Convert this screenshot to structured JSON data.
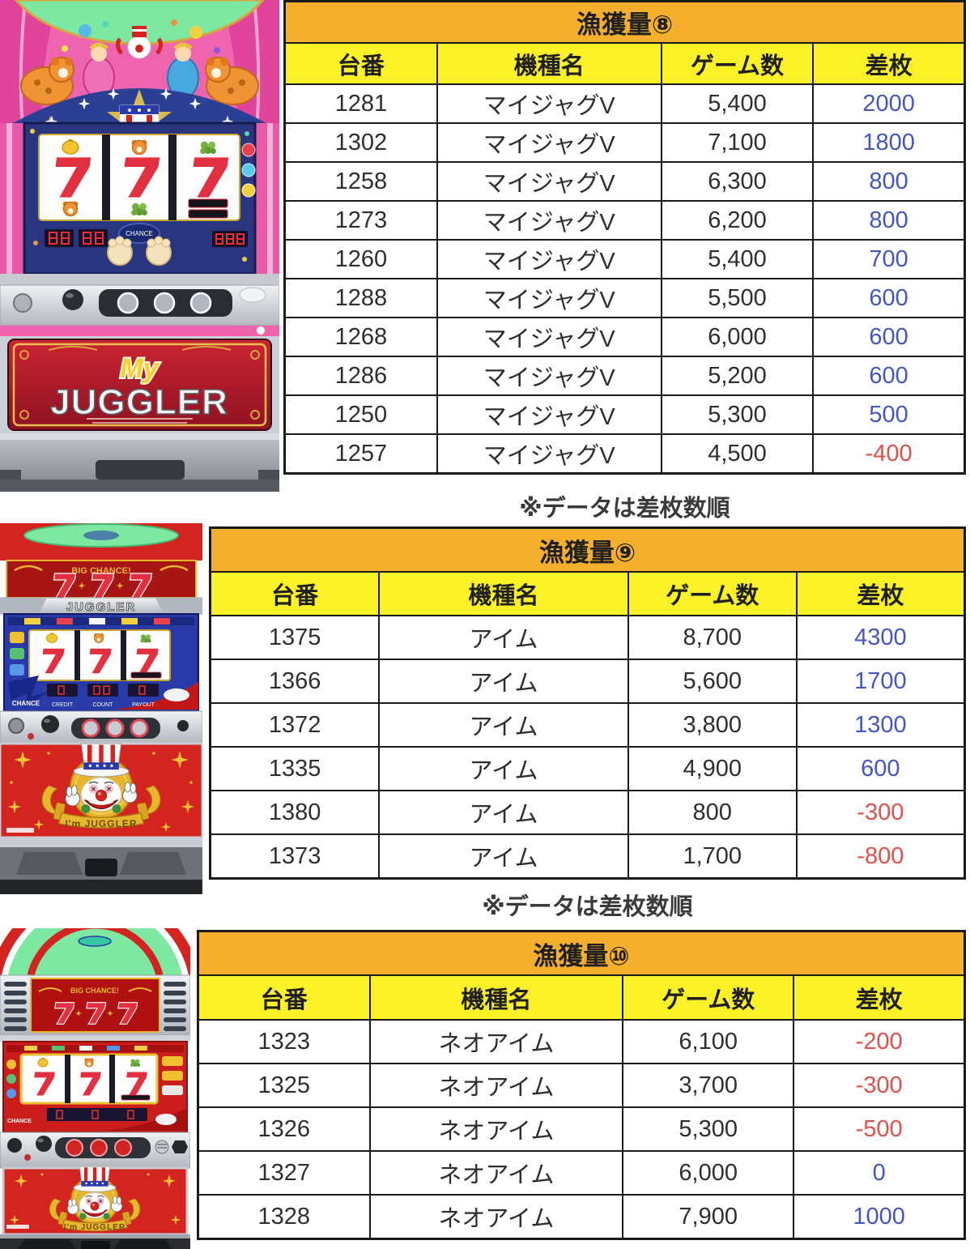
{
  "colors": {
    "title_bg": "#F4AF2C",
    "header_bg": "#FAF226",
    "blue": "#4355C7",
    "red": "#E0514B",
    "border": "#1b1b1b"
  },
  "tables": [
    {
      "title": "漁獲量⑧",
      "columns": [
        "台番",
        "機種名",
        "ゲーム数",
        "差枚"
      ],
      "note": "※データは差枚数順",
      "rows": [
        {
          "dai": "1281",
          "model": "マイジャグV",
          "games": "5,400",
          "diff": "2000",
          "diff_color": "blue"
        },
        {
          "dai": "1302",
          "model": "マイジャグV",
          "games": "7,100",
          "diff": "1800",
          "diff_color": "blue"
        },
        {
          "dai": "1258",
          "model": "マイジャグV",
          "games": "6,300",
          "diff": "800",
          "diff_color": "blue"
        },
        {
          "dai": "1273",
          "model": "マイジャグV",
          "games": "6,200",
          "diff": "800",
          "diff_color": "blue"
        },
        {
          "dai": "1260",
          "model": "マイジャグV",
          "games": "5,400",
          "diff": "700",
          "diff_color": "blue"
        },
        {
          "dai": "1288",
          "model": "マイジャグV",
          "games": "5,500",
          "diff": "600",
          "diff_color": "blue"
        },
        {
          "dai": "1268",
          "model": "マイジャグV",
          "games": "6,000",
          "diff": "600",
          "diff_color": "blue"
        },
        {
          "dai": "1286",
          "model": "マイジャグV",
          "games": "5,200",
          "diff": "600",
          "diff_color": "blue"
        },
        {
          "dai": "1250",
          "model": "マイジャグV",
          "games": "5,300",
          "diff": "500",
          "diff_color": "blue"
        },
        {
          "dai": "1257",
          "model": "マイジャグV",
          "games": "4,500",
          "diff": "-400",
          "diff_color": "red"
        }
      ]
    },
    {
      "title": "漁獲量⑨",
      "columns": [
        "台番",
        "機種名",
        "ゲーム数",
        "差枚"
      ],
      "note": "※データは差枚数順",
      "rows": [
        {
          "dai": "1375",
          "model": "アイム",
          "games": "8,700",
          "diff": "4300",
          "diff_color": "blue"
        },
        {
          "dai": "1366",
          "model": "アイム",
          "games": "5,600",
          "diff": "1700",
          "diff_color": "blue"
        },
        {
          "dai": "1372",
          "model": "アイム",
          "games": "3,800",
          "diff": "1300",
          "diff_color": "blue"
        },
        {
          "dai": "1335",
          "model": "アイム",
          "games": "4,900",
          "diff": "600",
          "diff_color": "blue"
        },
        {
          "dai": "1380",
          "model": "アイム",
          "games": "800",
          "diff": "-300",
          "diff_color": "red"
        },
        {
          "dai": "1373",
          "model": "アイム",
          "games": "1,700",
          "diff": "-800",
          "diff_color": "red"
        }
      ]
    },
    {
      "title": "漁獲量⑩",
      "columns": [
        "台番",
        "機種名",
        "ゲーム数",
        "差枚"
      ],
      "note": "",
      "rows": [
        {
          "dai": "1323",
          "model": "ネオアイム",
          "games": "6,100",
          "diff": "-200",
          "diff_color": "red"
        },
        {
          "dai": "1325",
          "model": "ネオアイム",
          "games": "3,700",
          "diff": "-300",
          "diff_color": "red"
        },
        {
          "dai": "1326",
          "model": "ネオアイム",
          "games": "5,300",
          "diff": "-500",
          "diff_color": "red"
        },
        {
          "dai": "1327",
          "model": "ネオアイム",
          "games": "6,000",
          "diff": "0",
          "diff_color": "blue"
        },
        {
          "dai": "1328",
          "model": "ネオアイム",
          "games": "7,900",
          "diff": "1000",
          "diff_color": "blue"
        }
      ]
    }
  ],
  "machines": [
    {
      "name": "my-juggler-v",
      "labels": {
        "my": "My",
        "juggler": "JUGGLER",
        "chance": "CHANCE"
      }
    },
    {
      "name": "im-juggler",
      "labels": {
        "big_chance": "BIG CHANCE!",
        "juggler": "JUGGLER",
        "chance": "CHANCE",
        "credit": "CREDIT",
        "count": "COUNT",
        "payout": "PAYOUT",
        "banner": "I'm JUGGLER"
      }
    },
    {
      "name": "neo-im-juggler",
      "labels": {
        "big_chance": "BIG CHANCE!",
        "chance": "CHANCE",
        "banner": "I'm JUGGLER"
      }
    }
  ]
}
